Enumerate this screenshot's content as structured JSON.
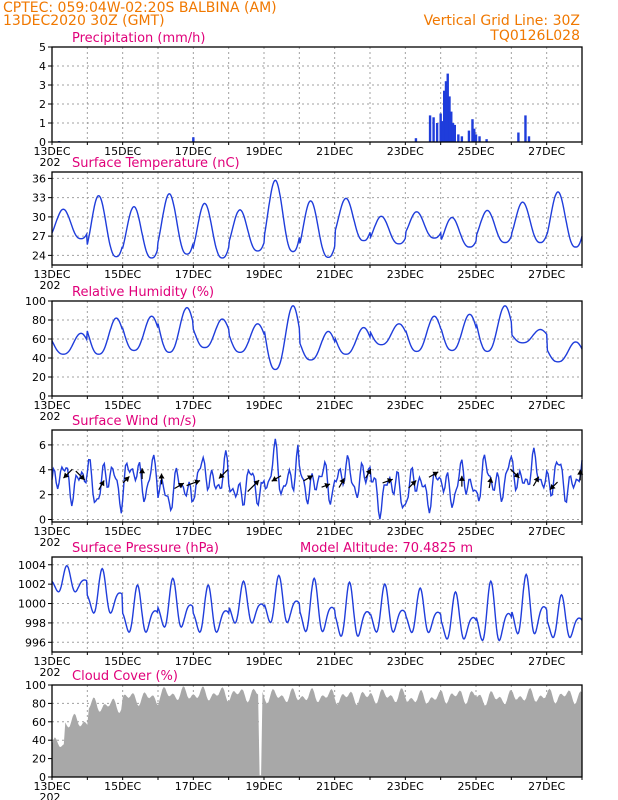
{
  "header": {
    "line1_left": "CPTEC:   059:04W-02:20S   BALBINA (AM)",
    "line2_left": "13DEC2020 30Z (GMT)",
    "line1_right": "Vertical Grid Line: 30Z",
    "line2_right": "TQ0126L028",
    "color": "#f07800"
  },
  "x_axis": {
    "start": "13DEC",
    "end": "28DEC",
    "tick_labels": [
      "13DEC",
      "15DEC",
      "17DEC",
      "19DEC",
      "21DEC",
      "23DEC",
      "25DEC",
      "27DEC"
    ],
    "year_fragment": "202"
  },
  "colors": {
    "line": "#1f3ddb",
    "title": "#e0007a",
    "cloud": "#a8a8a8",
    "arrow": "#000000"
  },
  "chart_data": [
    {
      "type": "bar",
      "title": "Precipitation (mm/h)",
      "ylim": [
        0,
        5
      ],
      "yticks": [
        0,
        1,
        2,
        3,
        4,
        5
      ],
      "series": [
        {
          "days": [
            0.2,
            4.0,
            10.3,
            10.7,
            10.8,
            10.9,
            11.0,
            11.05,
            11.1,
            11.15,
            11.2,
            11.25,
            11.3,
            11.35,
            11.4,
            11.5,
            11.6,
            11.8,
            11.9,
            11.95,
            12.0,
            12.1,
            12.3,
            13.2,
            13.4,
            13.5
          ],
          "values": [
            0.05,
            0.25,
            0.2,
            1.4,
            1.3,
            1.0,
            1.5,
            1.1,
            2.7,
            3.2,
            3.6,
            2.4,
            1.6,
            1.0,
            0.9,
            0.4,
            0.3,
            0.6,
            1.2,
            0.7,
            0.4,
            0.3,
            0.15,
            0.5,
            1.4,
            0.3
          ]
        }
      ]
    },
    {
      "type": "line",
      "title": "Surface Temperature (nC)",
      "ylim": [
        22.5,
        37
      ],
      "yticks": [
        24,
        27,
        30,
        33,
        36
      ],
      "series": [
        {
          "period_h": 24,
          "phase_day": 0.32,
          "min": [
            26.6,
            23.8,
            23.6,
            24.2,
            23.6,
            24.7,
            24.6,
            23.7,
            26.3,
            25.8,
            26.7,
            25.3,
            26.0,
            26.0,
            25.3,
            27.0
          ],
          "max": [
            31.2,
            33.3,
            31.6,
            33.6,
            32.1,
            31.1,
            35.7,
            32.5,
            32.9,
            30.1,
            30.8,
            29.9,
            31.0,
            32.3,
            33.9,
            34.4
          ]
        }
      ]
    },
    {
      "type": "line",
      "title": "Relative Humidity (%)",
      "ylim": [
        0,
        100
      ],
      "yticks": [
        0,
        20,
        40,
        60,
        80,
        100
      ],
      "series": [
        {
          "period_h": 24,
          "phase_day": 0.82,
          "min": [
            44,
            44,
            48,
            46,
            51,
            46,
            28,
            38,
            44,
            54,
            47,
            48,
            47,
            56,
            36,
            30
          ],
          "max": [
            66,
            82,
            84,
            93,
            81,
            76,
            95,
            68,
            72,
            76,
            84,
            86,
            95,
            70,
            57,
            53
          ]
        }
      ]
    },
    {
      "type": "line",
      "title": "Surface Wind (m/s)",
      "ylim": [
        -0.2,
        7.2
      ],
      "yticks": [
        0,
        2,
        4,
        6
      ],
      "series": [
        {
          "base": [
            3.2,
            3.0,
            3.4,
            2.4,
            3.4,
            2.6,
            3.6,
            3.0,
            3.4,
            2.4,
            2.6,
            2.8,
            3.2,
            3.6,
            3.2,
            3.0
          ],
          "amp": [
            1.6,
            2.0,
            1.8,
            1.6,
            1.6,
            1.6,
            2.4,
            1.6,
            1.6,
            1.8,
            1.6,
            1.8,
            1.8,
            1.6,
            1.8,
            2.2
          ]
        }
      ],
      "arrows": [
        {
          "day": 0.45,
          "dir_deg": 225,
          "len": 0.7
        },
        {
          "day": 0.8,
          "dir_deg": 315,
          "len": 0.7
        },
        {
          "day": 1.4,
          "dir_deg": 60,
          "len": 0.6
        },
        {
          "day": 2.1,
          "dir_deg": 45,
          "len": 0.5
        },
        {
          "day": 2.55,
          "dir_deg": 90,
          "len": 0.6
        },
        {
          "day": 3.1,
          "dir_deg": 90,
          "len": 0.6
        },
        {
          "day": 3.6,
          "dir_deg": 30,
          "len": 0.6
        },
        {
          "day": 4.0,
          "dir_deg": 20,
          "len": 0.8
        },
        {
          "day": 4.85,
          "dir_deg": 225,
          "len": 0.7
        },
        {
          "day": 5.7,
          "dir_deg": 45,
          "len": 0.9
        },
        {
          "day": 6.35,
          "dir_deg": 210,
          "len": 0.6
        },
        {
          "day": 7.25,
          "dir_deg": 30,
          "len": 0.6
        },
        {
          "day": 7.75,
          "dir_deg": 20,
          "len": 0.5
        },
        {
          "day": 8.2,
          "dir_deg": 60,
          "len": 0.6
        },
        {
          "day": 8.95,
          "dir_deg": 60,
          "len": 0.6
        },
        {
          "day": 9.5,
          "dir_deg": 20,
          "len": 0.6
        },
        {
          "day": 10.2,
          "dir_deg": 45,
          "len": 0.6
        },
        {
          "day": 10.8,
          "dir_deg": 30,
          "len": 0.6
        },
        {
          "day": 11.6,
          "dir_deg": 90,
          "len": 0.6
        },
        {
          "day": 12.4,
          "dir_deg": 80,
          "len": 0.6
        },
        {
          "day": 13.1,
          "dir_deg": 315,
          "len": 0.7
        },
        {
          "day": 13.7,
          "dir_deg": 60,
          "len": 0.6
        },
        {
          "day": 14.2,
          "dir_deg": 225,
          "len": 0.6
        },
        {
          "day": 14.95,
          "dir_deg": 90,
          "len": 0.6
        }
      ]
    },
    {
      "type": "line",
      "title": "Surface Pressure (hPa)",
      "annotation": "Model Altitude: 70.4825  m",
      "ylim": [
        995,
        1004.8
      ],
      "yticks": [
        996,
        998,
        1000,
        1002,
        1004
      ],
      "series": [
        {
          "period_h": 12,
          "phase_day": 0.42,
          "hi": [
            1003.9,
            1003.6,
            1001.9,
            1002.6,
            1001.9,
            1002.3,
            1002.9,
            1002.6,
            1002.2,
            1002.0,
            1001.6,
            1001.2,
            1002.3,
            1003.0,
            1000.9,
            1000.8
          ],
          "lo": [
            1000.9,
            998.5,
            996.5,
            997.0,
            996.5,
            997.5,
            997.5,
            996.5,
            996.0,
            996.5,
            996.5,
            995.8,
            995.5,
            996.2,
            996.0,
            995.4
          ]
        }
      ]
    },
    {
      "type": "area",
      "title": "Cloud Cover (%)",
      "ylim": [
        0,
        100
      ],
      "yticks": [
        0,
        20,
        40,
        60,
        80,
        100
      ],
      "series": [
        {
          "daily_mean": [
            60,
            78,
            86,
            90,
            90,
            90,
            88,
            88,
            87,
            88,
            86,
            88,
            86,
            88,
            88,
            88
          ],
          "dip_day": 5.9,
          "dip_value": 2
        }
      ]
    }
  ]
}
